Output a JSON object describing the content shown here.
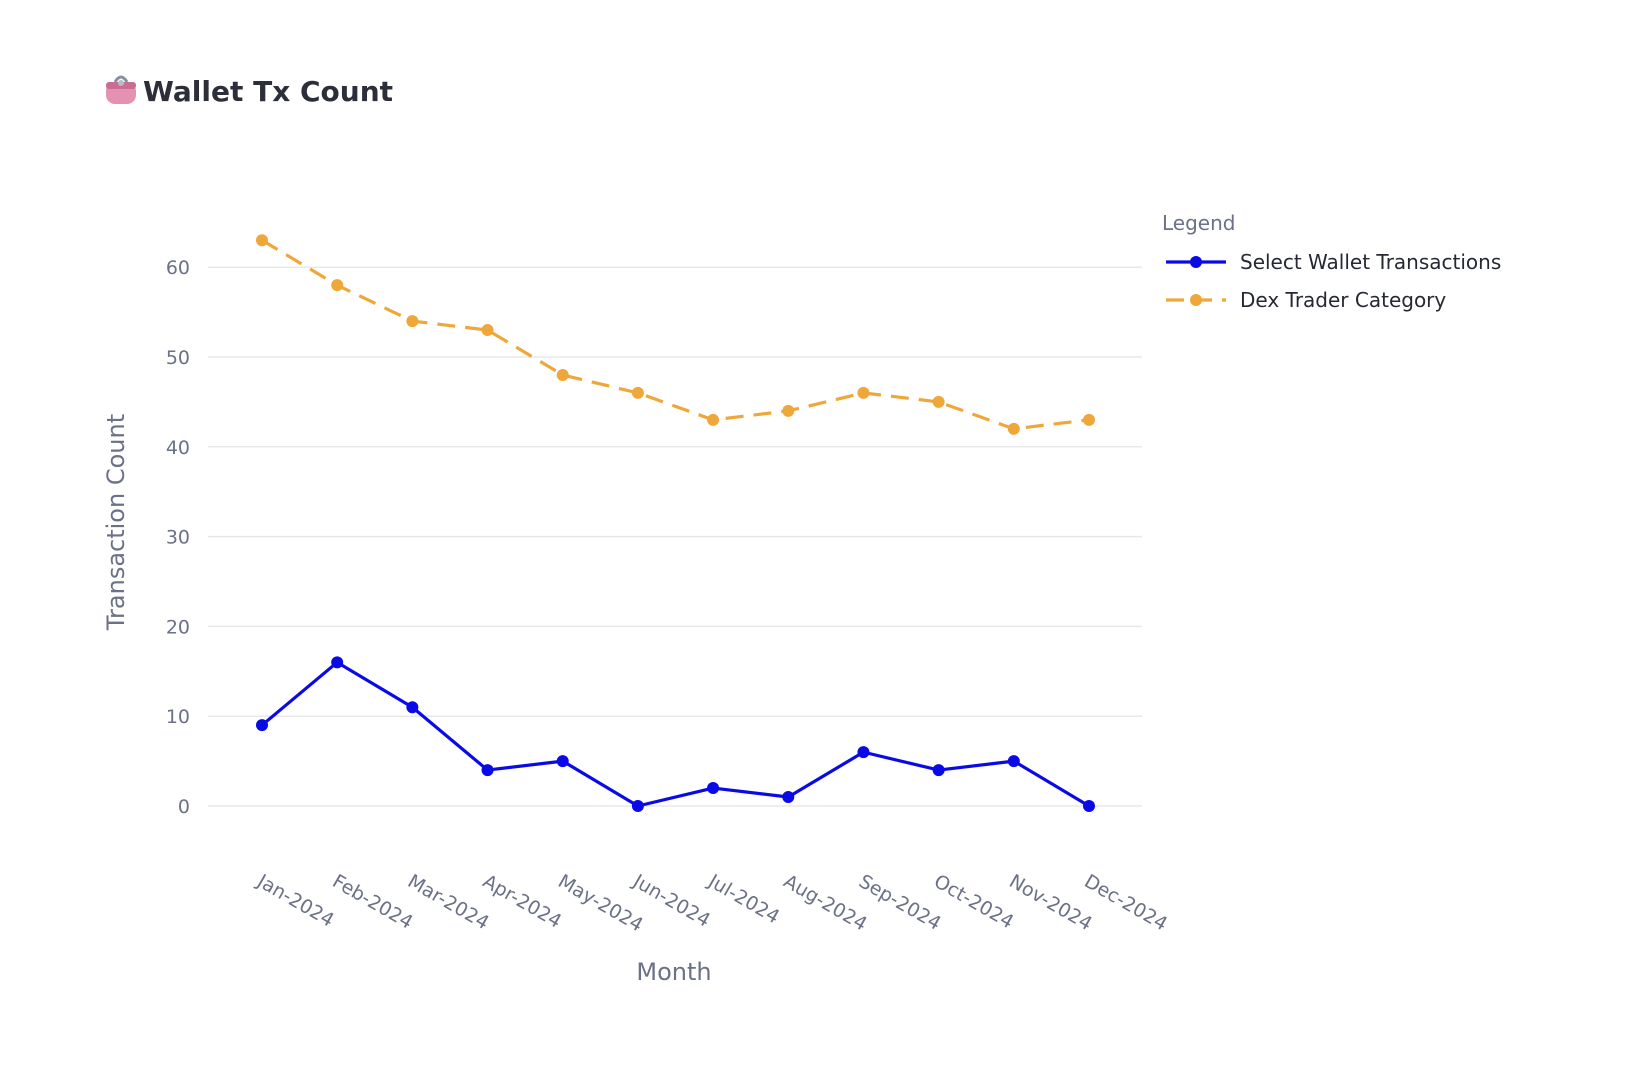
{
  "header": {
    "icon": "purse-icon",
    "title": "Wallet Tx Count"
  },
  "chart_data": {
    "type": "line",
    "title": "Wallet Tx Count",
    "xlabel": "Month",
    "ylabel": "Transaction Count",
    "categories": [
      "Jan-2024",
      "Feb-2024",
      "Mar-2024",
      "Apr-2024",
      "May-2024",
      "Jun-2024",
      "Jul-2024",
      "Aug-2024",
      "Sep-2024",
      "Oct-2024",
      "Nov-2024",
      "Dec-2024"
    ],
    "yticks": [
      0,
      10,
      20,
      30,
      40,
      50,
      60
    ],
    "ylim": [
      -5,
      67
    ],
    "grid": true,
    "legend_title": "Legend",
    "legend_position": "top-right",
    "series": [
      {
        "name": "Select Wallet Transactions",
        "color": "#0a0ae6",
        "dash": "solid",
        "values": [
          9,
          16,
          11,
          4,
          5,
          0,
          2,
          1,
          6,
          4,
          5,
          0
        ]
      },
      {
        "name": "Dex Trader Category",
        "color": "#f0a73a",
        "dash": "dashed",
        "values": [
          63,
          58,
          54,
          53,
          48,
          46,
          43,
          44,
          46,
          45,
          42,
          43
        ]
      }
    ]
  }
}
